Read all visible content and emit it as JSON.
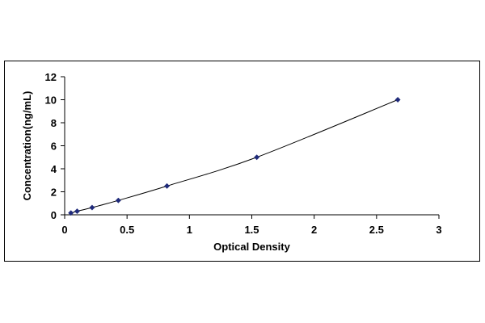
{
  "chart_data": {
    "type": "scatter",
    "title": "",
    "xlabel": "Optical Density",
    "ylabel": "Concentration(ng/mL)",
    "xlim": [
      0,
      3
    ],
    "ylim": [
      0,
      12
    ],
    "x_ticks": [
      0,
      0.5,
      1,
      1.5,
      2,
      2.5,
      3
    ],
    "y_ticks": [
      0,
      2,
      4,
      6,
      8,
      10,
      12
    ],
    "grid": false,
    "legend": "none",
    "marker": "diamond",
    "marker_color": "#1f2a7a",
    "line_color": "#000000",
    "series": [
      {
        "x": [
          0.05,
          0.1,
          0.22,
          0.43,
          0.82,
          1.54,
          2.67
        ],
        "y": [
          0.16,
          0.31,
          0.63,
          1.25,
          2.5,
          5,
          10
        ]
      }
    ]
  }
}
